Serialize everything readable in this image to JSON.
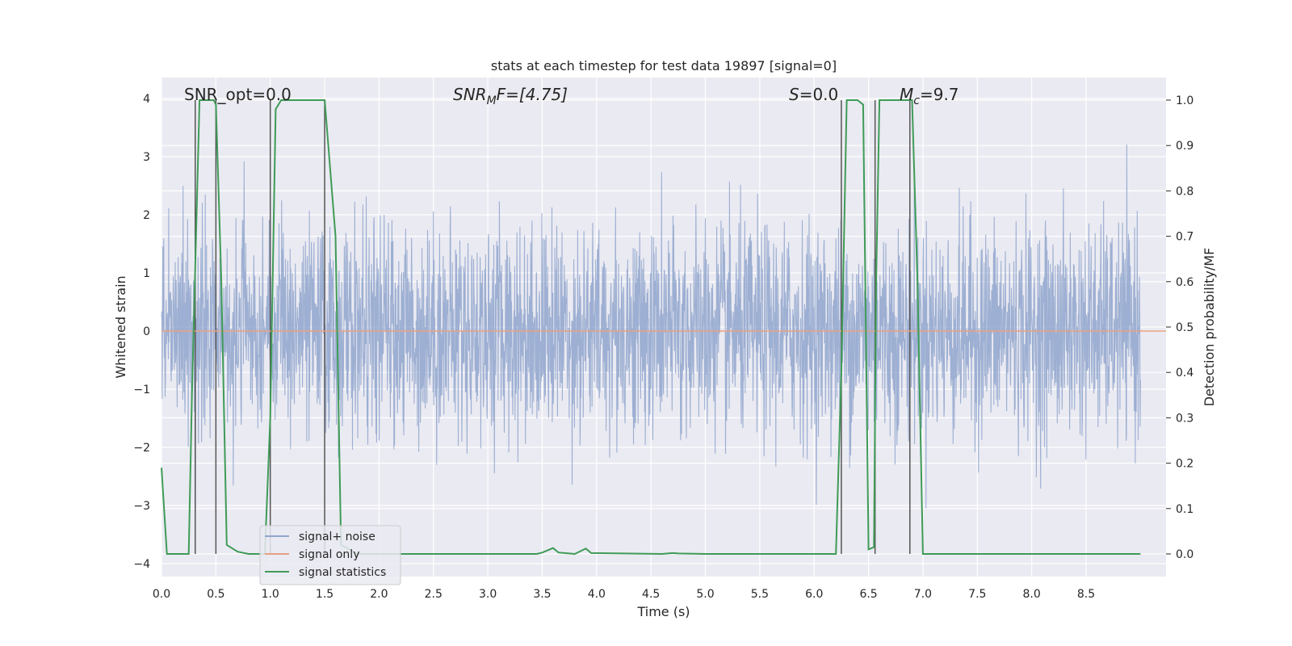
{
  "chart_data": {
    "type": "line",
    "title": "stats at each timestep for test data 19897 [signal=0]",
    "xlabel": "Time (s)",
    "ylabel": "Whitened strain",
    "ylabel_right": "Detection probability/MF",
    "xlim": [
      0.0,
      9.0
    ],
    "ylim": [
      -4.0,
      4.35
    ],
    "ylim_right": [
      -0.047,
      1.04
    ],
    "x_ticks": [
      "0.0",
      "0.5",
      "1.0",
      "1.5",
      "2.0",
      "2.5",
      "3.0",
      "3.5",
      "4.0",
      "4.5",
      "5.0",
      "5.5",
      "6.0",
      "6.5",
      "7.0",
      "7.5",
      "8.0",
      "8.5"
    ],
    "y_ticks": [
      "−4",
      "−3",
      "−2",
      "−1",
      "0",
      "1",
      "2",
      "3",
      "4"
    ],
    "y_right_ticks": [
      "0.0",
      "0.1",
      "0.2",
      "0.3",
      "0.4",
      "0.5",
      "0.6",
      "0.7",
      "0.8",
      "0.9",
      "1.0"
    ],
    "grid": true,
    "legend_position": "lower-left",
    "annotations": {
      "snr_opt": "SNR_opt=0.0",
      "snr_mf_base": "SNR",
      "snr_mf_sub": "M",
      "snr_mf_rest": "F=[4.75]",
      "s_italic": "S",
      "s_rest": "=0.0",
      "mc_base": "M",
      "mc_sub": "c",
      "mc_rest": "=9.7"
    },
    "series": [
      {
        "name": "signal+ noise",
        "color": "#8fa5cd",
        "description": "whitened strain noise, approximately Gaussian with sigma ~0.9 sampled densely over 0–9 s",
        "y_range": [
          -3.6,
          3.5
        ]
      },
      {
        "name": "signal only",
        "color": "#e8a080",
        "x": [
          0.0,
          9.0
        ],
        "y": [
          0.0,
          0.0
        ]
      },
      {
        "name": "signal statistics",
        "color": "#3f9b57",
        "axis": "right",
        "x": [
          0.0,
          0.05,
          0.25,
          0.28,
          0.35,
          0.38,
          0.45,
          0.48,
          0.5,
          0.55,
          0.6,
          0.7,
          0.8,
          0.95,
          1.0,
          1.05,
          1.1,
          1.5,
          1.6,
          1.65,
          1.8,
          1.85,
          2.0,
          3.45,
          3.5,
          3.6,
          3.65,
          3.8,
          3.9,
          3.95,
          4.6,
          4.7,
          4.75,
          5.0,
          6.2,
          6.25,
          6.3,
          6.35,
          6.4,
          6.45,
          6.5,
          6.55,
          6.57,
          6.6,
          6.65,
          6.7,
          6.85,
          6.9,
          6.95,
          7.0,
          9.0
        ],
        "y": [
          0.19,
          0.0,
          0.0,
          0.35,
          1.0,
          1.0,
          1.0,
          1.0,
          0.99,
          0.6,
          0.02,
          0.005,
          0.0,
          0.0,
          0.3,
          0.98,
          1.0,
          1.0,
          0.7,
          0.02,
          0.0,
          0.0,
          0.0,
          0.0,
          0.003,
          0.013,
          0.003,
          0.0,
          0.012,
          0.002,
          0.0,
          0.002,
          0.001,
          0.0,
          0.0,
          0.4,
          1.0,
          1.0,
          1.0,
          0.99,
          0.01,
          0.015,
          0.6,
          1.0,
          1.0,
          1.0,
          1.0,
          1.0,
          0.6,
          0.0,
          0.0
        ]
      }
    ],
    "vertical_lines_x": [
      0.31,
      0.5,
      1.0,
      1.5,
      6.25,
      6.56,
      6.88
    ],
    "vertical_lines_color": "#555555",
    "legend": [
      "signal+ noise",
      "signal only",
      "signal statistics"
    ]
  }
}
